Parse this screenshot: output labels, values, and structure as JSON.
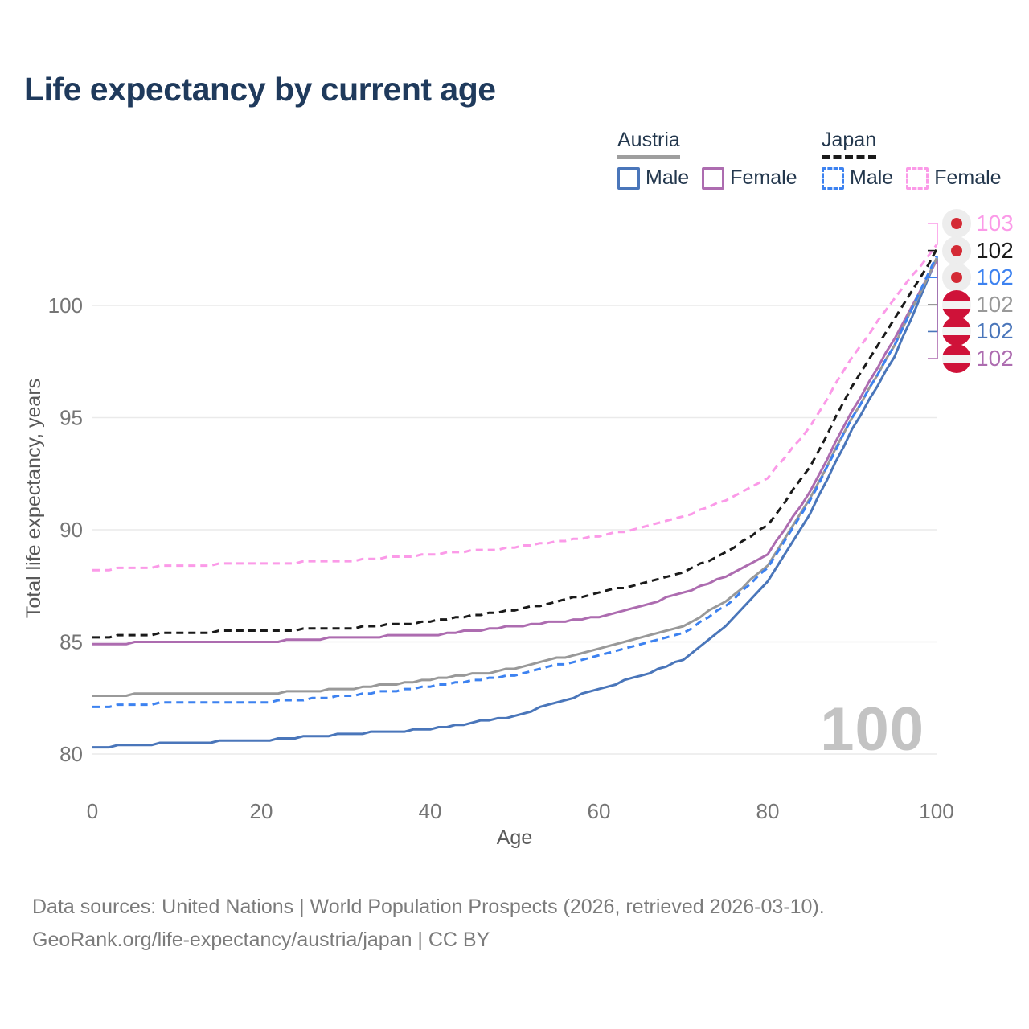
{
  "title": "Life expectancy by current age",
  "watermark": "100",
  "legend": {
    "groups": [
      {
        "country": "Austria",
        "line_style": "solid",
        "underline_color": "#9e9e9e",
        "items": [
          {
            "label": "Male",
            "color": "#4a76ba",
            "dashed": false
          },
          {
            "label": "Female",
            "color": "#ad6cb0",
            "dashed": false
          }
        ]
      },
      {
        "country": "Japan",
        "line_style": "dashed",
        "underline_color": "#1a1a1a",
        "items": [
          {
            "label": "Male",
            "color": "#3d82f0",
            "dashed": true
          },
          {
            "label": "Female",
            "color": "#fb9ae8",
            "dashed": true
          }
        ]
      }
    ]
  },
  "chart_data": {
    "type": "line",
    "title": "Life expectancy by current age",
    "xlabel": "Age",
    "ylabel": "Total life expectancy, years",
    "x_ticks": [
      0,
      20,
      40,
      60,
      80,
      100
    ],
    "y_ticks": [
      80,
      85,
      90,
      95,
      100
    ],
    "xlim": [
      0,
      100
    ],
    "ylim": [
      79.5,
      103.5
    ],
    "grid": "horizontal",
    "legend_position": "top-right",
    "x": [
      0,
      10,
      20,
      30,
      40,
      50,
      60,
      65,
      70,
      75,
      80,
      85,
      90,
      95,
      100
    ],
    "series": [
      {
        "name": "Austria Male",
        "country": "Austria",
        "sex": "Male",
        "color": "#4a76ba",
        "dashed": false,
        "values": [
          80.3,
          80.5,
          80.6,
          80.9,
          81.1,
          81.7,
          82.9,
          83.5,
          84.2,
          85.7,
          87.7,
          90.7,
          94.5,
          97.7,
          102.05
        ]
      },
      {
        "name": "Austria Female",
        "country": "Austria",
        "sex": "Female",
        "color": "#ad6cb0",
        "dashed": false,
        "values": [
          84.9,
          85.0,
          85.0,
          85.2,
          85.3,
          85.7,
          86.1,
          86.6,
          87.2,
          87.9,
          88.9,
          91.7,
          95.3,
          98.5,
          102.0
        ]
      },
      {
        "name": "Austria",
        "country": "Austria",
        "sex": "Both",
        "color": "#999999",
        "dashed": false,
        "values": [
          82.6,
          82.7,
          82.7,
          82.9,
          83.3,
          83.8,
          84.7,
          85.2,
          85.7,
          86.8,
          88.4,
          91.4,
          95.0,
          98.2,
          102.1
        ]
      },
      {
        "name": "Japan Male",
        "country": "Japan",
        "sex": "Male",
        "color": "#3d82f0",
        "dashed": true,
        "values": [
          82.1,
          82.3,
          82.3,
          82.6,
          83.0,
          83.5,
          84.4,
          84.9,
          85.4,
          86.6,
          88.3,
          91.3,
          95.0,
          98.2,
          102.2
        ]
      },
      {
        "name": "Japan",
        "country": "Japan",
        "sex": "Both",
        "color": "#1a1a1a",
        "dashed": true,
        "values": [
          85.2,
          85.4,
          85.5,
          85.6,
          85.9,
          86.4,
          87.2,
          87.6,
          88.1,
          89.0,
          90.2,
          92.8,
          96.4,
          99.4,
          102.45
        ]
      },
      {
        "name": "Japan Female",
        "country": "Japan",
        "sex": "Female",
        "color": "#fb9ae8",
        "dashed": true,
        "values": [
          88.2,
          88.4,
          88.5,
          88.6,
          88.9,
          89.2,
          89.7,
          90.1,
          90.6,
          91.3,
          92.3,
          94.6,
          97.7,
          100.3,
          102.7
        ]
      }
    ],
    "end_labels": [
      {
        "text": "103",
        "value": 102.7,
        "series": "Japan Female",
        "color": "#fb9ae8",
        "flag": "japan"
      },
      {
        "text": "102",
        "value": 102.45,
        "series": "Japan",
        "color": "#1a1a1a",
        "flag": "japan"
      },
      {
        "text": "102",
        "value": 102.2,
        "series": "Japan Male",
        "color": "#3d82f0",
        "flag": "japan"
      },
      {
        "text": "102",
        "value": 102.1,
        "series": "Austria",
        "color": "#999999",
        "flag": "austria"
      },
      {
        "text": "102",
        "value": 102.05,
        "series": "Austria Male",
        "color": "#4a76ba",
        "flag": "austria"
      },
      {
        "text": "102",
        "value": 102.0,
        "series": "Austria Female",
        "color": "#ad6cb0",
        "flag": "austria"
      }
    ],
    "watermark": "100"
  },
  "axes": {
    "x_label": "Age",
    "y_label": "Total life expectancy, years"
  },
  "footer": {
    "line1": "Data sources: United Nations | World Population Prospects (2026, retrieved 2026-03-10).",
    "line2": "GeoRank.org/life-expectancy/austria/japan | CC BY"
  }
}
